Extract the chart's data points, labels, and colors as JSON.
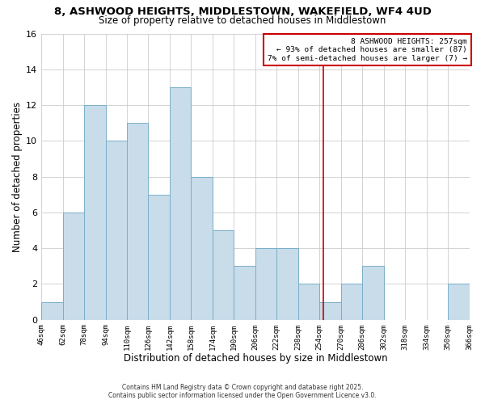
{
  "title": "8, ASHWOOD HEIGHTS, MIDDLESTOWN, WAKEFIELD, WF4 4UD",
  "subtitle": "Size of property relative to detached houses in Middlestown",
  "xlabel": "Distribution of detached houses by size in Middlestown",
  "ylabel": "Number of detached properties",
  "bin_edges": [
    46,
    62,
    78,
    94,
    110,
    126,
    142,
    158,
    174,
    190,
    206,
    222,
    238,
    254,
    270,
    286,
    302,
    318,
    334,
    350,
    366
  ],
  "counts": [
    1,
    6,
    12,
    10,
    11,
    7,
    13,
    8,
    5,
    3,
    4,
    4,
    2,
    1,
    2,
    3,
    0,
    0,
    0,
    2
  ],
  "bar_color": "#c8dcea",
  "bar_edge_color": "#7aafc8",
  "vline_x": 257,
  "vline_color": "#cc0000",
  "ylim": [
    0,
    16
  ],
  "yticks": [
    0,
    2,
    4,
    6,
    8,
    10,
    12,
    14,
    16
  ],
  "tick_labels": [
    "46sqm",
    "62sqm",
    "78sqm",
    "94sqm",
    "110sqm",
    "126sqm",
    "142sqm",
    "158sqm",
    "174sqm",
    "190sqm",
    "206sqm",
    "222sqm",
    "238sqm",
    "254sqm",
    "270sqm",
    "286sqm",
    "302sqm",
    "318sqm",
    "334sqm",
    "350sqm",
    "366sqm"
  ],
  "annotation_title": "8 ASHWOOD HEIGHTS: 257sqm",
  "annotation_line1": "← 93% of detached houses are smaller (87)",
  "annotation_line2": "7% of semi-detached houses are larger (7) →",
  "annotation_box_color": "#ffffff",
  "annotation_box_edge": "#cc0000",
  "footnote1": "Contains HM Land Registry data © Crown copyright and database right 2025.",
  "footnote2": "Contains public sector information licensed under the Open Government Licence v3.0.",
  "grid_color": "#cccccc",
  "bg_color": "#ffffff"
}
